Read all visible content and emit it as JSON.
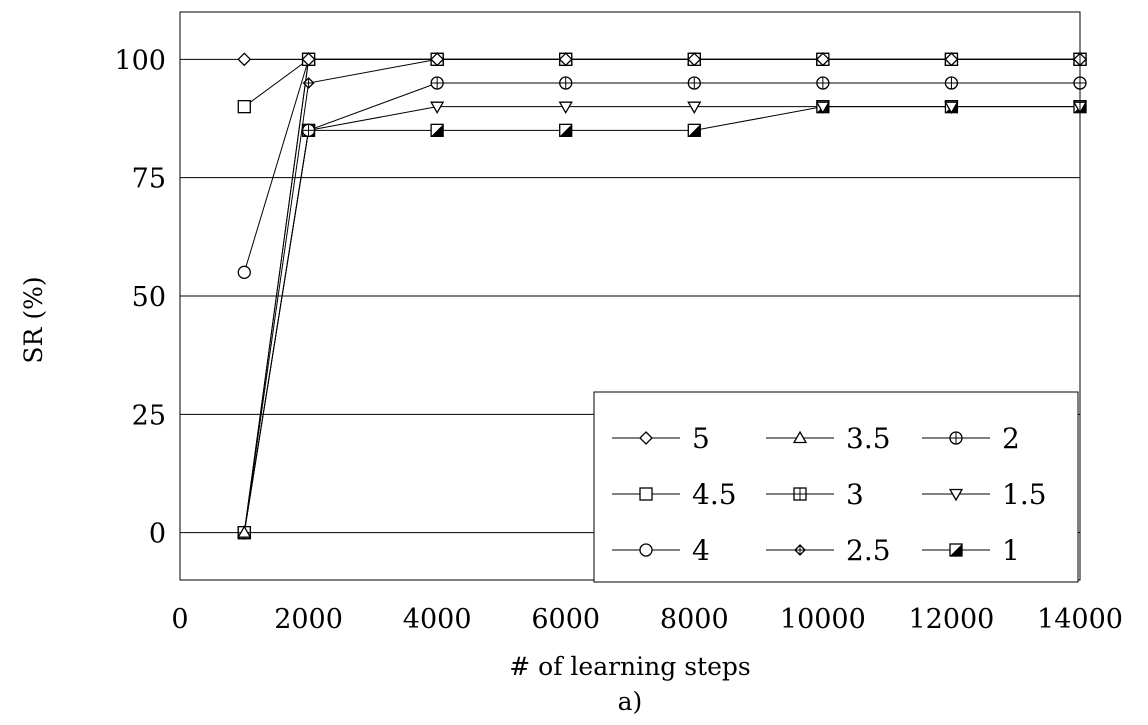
{
  "chart_data": {
    "type": "line",
    "title": "",
    "xlabel": "# of learning steps",
    "ylabel": "SR (%)",
    "caption": "a)",
    "xlim": [
      0,
      14000
    ],
    "ylim": [
      -10,
      110
    ],
    "x_ticks": [
      0,
      2000,
      4000,
      6000,
      8000,
      10000,
      12000,
      14000
    ],
    "x_tick_labels": [
      "0",
      "2000",
      "4000",
      "6000",
      "8000",
      "10000",
      "12000",
      "14000"
    ],
    "y_ticks": [
      0,
      25,
      50,
      75,
      100
    ],
    "y_tick_labels": [
      "0",
      "25",
      "50",
      "75",
      "100"
    ],
    "grid": "horizontal",
    "legend_position": "bottom-right",
    "x": [
      1000,
      2000,
      4000,
      6000,
      8000,
      10000,
      12000,
      14000
    ],
    "series": [
      {
        "name": "5",
        "marker": "diamond",
        "values": [
          100,
          100,
          100,
          100,
          100,
          100,
          100,
          100
        ]
      },
      {
        "name": "4.5",
        "marker": "square",
        "values": [
          90,
          100,
          100,
          100,
          100,
          100,
          100,
          100
        ]
      },
      {
        "name": "4",
        "marker": "circle",
        "values": [
          55,
          100,
          100,
          100,
          100,
          100,
          100,
          100
        ]
      },
      {
        "name": "3.5",
        "marker": "triangle-up",
        "values": [
          0,
          100,
          100,
          100,
          100,
          100,
          100,
          100
        ]
      },
      {
        "name": "3",
        "marker": "square-plus",
        "values": [
          0,
          100,
          100,
          100,
          100,
          100,
          100,
          100
        ]
      },
      {
        "name": "2.5",
        "marker": "diamond-plus",
        "values": [
          0,
          95,
          100,
          100,
          100,
          100,
          100,
          100
        ]
      },
      {
        "name": "2",
        "marker": "circle-plus",
        "values": [
          0,
          85,
          95,
          95,
          95,
          95,
          95,
          95
        ]
      },
      {
        "name": "1.5",
        "marker": "triangle-down",
        "values": [
          0,
          85,
          90,
          90,
          90,
          90,
          90,
          90
        ]
      },
      {
        "name": "1",
        "marker": "square-half",
        "values": [
          0,
          85,
          85,
          85,
          85,
          90,
          90,
          90
        ]
      }
    ],
    "legend_order": [
      "5",
      "3.5",
      "2",
      "4.5",
      "3",
      "1.5",
      "4",
      "2.5",
      "1"
    ]
  }
}
